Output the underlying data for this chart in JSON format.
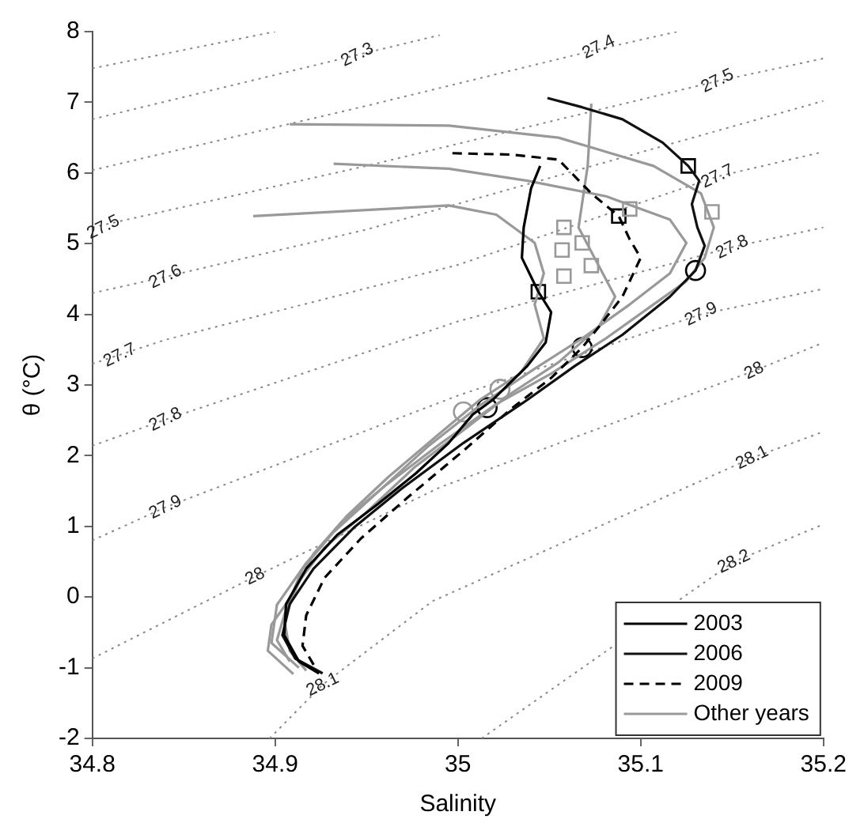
{
  "chart_data": {
    "type": "line",
    "xlabel": "Salinity",
    "ylabel": "θ (°C)",
    "xlim": [
      34.8,
      35.2
    ],
    "xticks": [
      34.8,
      34.9,
      35,
      35.1,
      35.2
    ],
    "ylim": [
      -2,
      8
    ],
    "yticks": [
      -2,
      -1,
      0,
      1,
      2,
      3,
      4,
      5,
      6,
      7,
      8
    ],
    "grid": false,
    "legend": "bottom right",
    "marker": "none",
    "series": [
      {
        "name": "2003",
        "color": "#000000",
        "line_style": "solid",
        "x": [
          35.045,
          35.04,
          35.036,
          35.035,
          35.044,
          35.051,
          35.048,
          35.038,
          35.019,
          35.008,
          34.995,
          34.977,
          34.956,
          34.934,
          34.917,
          34.906,
          34.905,
          34.913,
          34.924
        ],
        "values": [
          6.1,
          5.78,
          5.23,
          4.8,
          4.32,
          4.03,
          3.6,
          3.27,
          2.79,
          2.58,
          2.18,
          1.75,
          1.31,
          0.88,
          0.4,
          -0.1,
          -0.54,
          -0.91,
          -1.08
        ]
      },
      {
        "name": "2006",
        "color": "#111111",
        "line_style": "solid",
        "x": [
          35.049,
          35.068,
          35.09,
          35.112,
          35.126,
          35.132,
          35.128,
          35.131,
          35.135,
          35.13,
          35.116,
          35.09,
          35.064,
          35.038,
          35.003,
          34.969,
          34.943,
          34.921,
          34.908,
          34.904,
          34.911,
          34.926
        ],
        "values": [
          7.06,
          6.93,
          6.76,
          6.43,
          6.1,
          5.89,
          5.56,
          5.23,
          4.97,
          4.62,
          4.25,
          3.71,
          3.27,
          2.79,
          2.18,
          1.53,
          0.98,
          0.4,
          -0.1,
          -0.54,
          -0.87,
          -1.08
        ]
      },
      {
        "name": "2009",
        "color": "#000000",
        "line_style": "dashed",
        "x": [
          34.997,
          35.029,
          35.055,
          35.073,
          35.088,
          35.094,
          35.1,
          35.09,
          35.077,
          35.068,
          35.051,
          35.029,
          35.003,
          34.973,
          34.947,
          34.927,
          34.917,
          34.915,
          34.922
        ],
        "values": [
          6.28,
          6.26,
          6.19,
          5.71,
          5.39,
          5.06,
          4.8,
          4.25,
          3.82,
          3.53,
          3.1,
          2.66,
          2.07,
          1.42,
          0.83,
          0.27,
          -0.26,
          -0.69,
          -1.0
        ]
      },
      {
        "name": "Other years",
        "color": "#999999",
        "line_style": "solid",
        "x": [
          34.908,
          34.995,
          35.055,
          35.107,
          35.133,
          35.14,
          35.135,
          35.125,
          35.107,
          35.081,
          35.051,
          35.021,
          34.991,
          34.96,
          34.936,
          34.917,
          34.901,
          34.898,
          34.913
        ],
        "values": [
          6.69,
          6.67,
          6.5,
          6.1,
          5.71,
          5.23,
          4.8,
          4.47,
          4.14,
          3.66,
          3.16,
          2.73,
          2.18,
          1.57,
          1.05,
          0.48,
          -0.11,
          -0.65,
          -1.0
        ]
      },
      {
        "color": "#999999",
        "line_style": "solid",
        "x": [
          34.932,
          34.995,
          35.038,
          35.081,
          35.116,
          35.125,
          35.116,
          35.094,
          35.068,
          35.042,
          35.012,
          34.984,
          34.956,
          34.932,
          34.915,
          34.906,
          34.901,
          34.908
        ],
        "values": [
          6.13,
          6.06,
          5.89,
          5.67,
          5.34,
          5.01,
          4.58,
          4.14,
          3.66,
          3.23,
          2.71,
          2.14,
          1.48,
          0.92,
          0.4,
          -0.17,
          -0.61,
          -0.91
        ]
      },
      {
        "color": "#999999",
        "line_style": "solid",
        "x": [
          34.888,
          34.96,
          34.995,
          35.021,
          35.042,
          35.047,
          35.042,
          35.047,
          35.034,
          35.012,
          34.988,
          34.962,
          34.939,
          34.921,
          34.91,
          34.898,
          34.896,
          34.91
        ],
        "values": [
          5.39,
          5.49,
          5.54,
          5.41,
          5.01,
          4.58,
          4.14,
          3.66,
          3.16,
          2.79,
          2.27,
          1.7,
          1.14,
          0.61,
          0.05,
          -0.39,
          -0.76,
          -1.09
        ]
      },
      {
        "color": "#999999",
        "line_style": "solid",
        "x": [
          35.073,
          35.071,
          35.066,
          35.077,
          35.086,
          35.077,
          35.055,
          35.029,
          35.003,
          34.976,
          34.95,
          34.927,
          34.913,
          34.905,
          34.908,
          34.917
        ],
        "values": [
          6.98,
          6.1,
          5.23,
          4.69,
          4.25,
          3.82,
          3.32,
          2.88,
          2.36,
          1.83,
          1.2,
          0.7,
          0.22,
          -0.32,
          -0.76,
          -1.04
        ]
      },
      {
        "type": "scatter",
        "marker": "square",
        "color": "#999999",
        "x": [
          35.058,
          35.068,
          35.057,
          35.073,
          35.058,
          35.094,
          35.139
        ],
        "values": [
          5.23,
          5.01,
          4.91,
          4.69,
          4.54,
          5.49,
          5.45
        ]
      },
      {
        "type": "scatter",
        "marker": "circle",
        "color": "#999999",
        "x": [
          35.023,
          35.003
        ],
        "values": [
          2.94,
          2.62
        ]
      },
      {
        "type": "scatter",
        "marker": "square",
        "color": "#000000",
        "x": [
          35.126,
          35.044,
          35.088
        ],
        "values": [
          6.1,
          4.32,
          5.39
        ]
      },
      {
        "type": "scatter",
        "marker": "circle",
        "color": "#000000",
        "x": [
          35.13,
          35.068,
          35.016
        ],
        "values": [
          4.62,
          3.53,
          2.68
        ]
      },
      {
        "color": "#888888",
        "line_style": "dotted",
        "x": [
          34.8,
          34.9
        ],
        "values": [
          7.48,
          8
        ]
      },
      {
        "color": "#888888",
        "line_style": "dotted",
        "x": [
          34.8,
          34.945,
          34.99
        ],
        "values": [
          6.76,
          7.67,
          7.95
        ]
      },
      {
        "color": "#888888",
        "line_style": "dotted",
        "x": [
          34.8,
          34.95,
          35.077,
          35.12
        ],
        "values": [
          6.04,
          6.95,
          7.75,
          8
        ]
      },
      {
        "color": "#888888",
        "line_style": "dotted",
        "x": [
          34.8,
          34.95,
          35.142,
          35.2
        ],
        "values": [
          5.23,
          6.1,
          7.3,
          7.62
        ]
      },
      {
        "color": "#888888",
        "line_style": "dotted",
        "x": [
          34.8,
          34.84,
          34.95,
          35.2
        ],
        "values": [
          4.3,
          4.53,
          5.2,
          7.02
        ]
      },
      {
        "color": "#888888",
        "line_style": "dotted",
        "x": [
          34.8,
          34.84,
          35.0,
          35.142,
          35.2
        ],
        "values": [
          3.3,
          3.64,
          4.7,
          5.95,
          6.3
        ]
      },
      {
        "color": "#888888",
        "line_style": "dotted",
        "x": [
          34.8,
          34.84,
          35.0,
          35.15,
          35.2
        ],
        "values": [
          2.14,
          2.51,
          3.9,
          4.95,
          5.23
        ]
      },
      {
        "color": "#888888",
        "line_style": "dotted",
        "x": [
          34.8,
          34.84,
          35.0,
          35.133,
          35.2
        ],
        "values": [
          0.8,
          1.27,
          2.85,
          4.0,
          4.36
        ]
      },
      {
        "color": "#888888",
        "line_style": "dotted",
        "x": [
          34.8,
          34.889,
          34.99,
          35.162,
          35.2
        ],
        "values": [
          -0.87,
          0.29,
          1.55,
          3.2,
          3.6
        ]
      },
      {
        "color": "#888888",
        "line_style": "dotted",
        "x": [
          34.897,
          34.926,
          34.986,
          35.161,
          35.2
        ],
        "values": [
          -2,
          -1.24,
          -0.06,
          1.97,
          2.34
        ]
      },
      {
        "color": "#888888",
        "line_style": "dotted",
        "x": [
          35.013,
          35.151,
          35.2
        ],
        "values": [
          -2,
          0.5,
          1.03
        ]
      }
    ],
    "annotations": [
      {
        "text": "27.3",
        "x": 34.945,
        "y": 7.67
      },
      {
        "text": "27.4",
        "x": 35.077,
        "y": 7.78
      },
      {
        "text": "27.5",
        "x": 35.142,
        "y": 7.3
      },
      {
        "text": "27.5",
        "x": 34.806,
        "y": 5.23
      },
      {
        "text": "27.6",
        "x": 34.84,
        "y": 4.53
      },
      {
        "text": "27.7",
        "x": 35.142,
        "y": 5.95
      },
      {
        "text": "27.7",
        "x": 34.815,
        "y": 3.42
      },
      {
        "text": "27.8",
        "x": 35.15,
        "y": 4.95
      },
      {
        "text": "27.8",
        "x": 34.84,
        "y": 2.51
      },
      {
        "text": "27.9",
        "x": 35.133,
        "y": 4.0
      },
      {
        "text": "27.9",
        "x": 34.84,
        "y": 1.27
      },
      {
        "text": "28",
        "x": 35.162,
        "y": 3.2
      },
      {
        "text": "28",
        "x": 34.889,
        "y": 0.29
      },
      {
        "text": "28.1",
        "x": 35.161,
        "y": 1.97
      },
      {
        "text": "28.1",
        "x": 34.926,
        "y": -1.24
      },
      {
        "text": "28.2",
        "x": 35.151,
        "y": 0.5
      }
    ]
  }
}
